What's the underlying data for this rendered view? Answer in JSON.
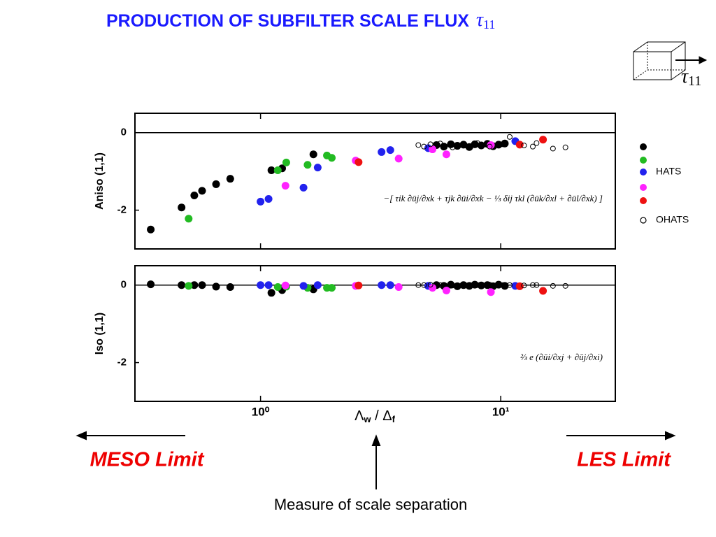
{
  "title": "PRODUCTION OF SUBFILTER SCALE FLUX",
  "title_symbol": "τ",
  "title_subscript": "11",
  "cube_symbol": "τ",
  "cube_subscript": "11",
  "meso_limit": "MESO Limit",
  "les_limit": "LES Limit",
  "caption": "Measure of scale separation",
  "x_label": [
    "Λ",
    "w",
    " / Δ",
    "f"
  ],
  "chart_data": [
    {
      "type": "scatter",
      "y_label": "Aniso (1,1)",
      "log_x": true,
      "xlim": [
        0.3,
        30
      ],
      "xticks": [
        1,
        10
      ],
      "ylim": [
        -3,
        0.5
      ],
      "yticks": [
        -2,
        0
      ],
      "annotation": "−[ τik ∂ūj/∂xk + τjk ∂ūi/∂xk − ⅓ δij τkl (∂ūk/∂xl + ∂ūl/∂xk) ]",
      "series": [
        {
          "color": "#000000",
          "x": [
            0.349,
            0.469,
            0.53,
            0.571,
            0.653,
            0.748,
            1.11,
            1.23,
            1.66,
            5.4,
            5.8,
            6.2,
            6.6,
            7.0,
            7.4,
            7.8,
            8.3,
            8.8,
            9.3,
            9.8,
            10.4
          ],
          "values": [
            -2.5,
            -1.93,
            -1.62,
            -1.5,
            -1.33,
            -1.19,
            -0.97,
            -0.92,
            -0.56,
            -0.32,
            -0.36,
            -0.3,
            -0.34,
            -0.31,
            -0.37,
            -0.3,
            -0.33,
            -0.29,
            -0.35,
            -0.31,
            -0.28
          ]
        },
        {
          "color": "#22bb22",
          "x": [
            0.502,
            1.18,
            1.28,
            1.57,
            1.89,
            1.98
          ],
          "values": [
            -2.22,
            -0.97,
            -0.77,
            -0.83,
            -0.59,
            -0.65
          ]
        },
        {
          "name": "HATS",
          "color": "#2222ee",
          "x": [
            1.0,
            1.08,
            1.51,
            1.73,
            3.19,
            3.47,
            4.99,
            11.5
          ],
          "values": [
            -1.78,
            -1.71,
            -1.42,
            -0.9,
            -0.5,
            -0.45,
            -0.4,
            -0.22
          ]
        },
        {
          "color": "#ff22ff",
          "x": [
            1.27,
            2.49,
            3.76,
            5.2,
            5.94,
            9.1
          ],
          "values": [
            -1.37,
            -0.72,
            -0.67,
            -0.43,
            -0.56,
            -0.32
          ]
        },
        {
          "color": "#ee1111",
          "x": [
            2.56,
            12.0,
            15.0
          ],
          "values": [
            -0.76,
            -0.31,
            -0.18
          ]
        },
        {
          "name": "OHATS",
          "color": "#000000",
          "marker": "open",
          "x": [
            4.54,
            4.79,
            5.1,
            5.6,
            6.3,
            7.1,
            8.0,
            9.0,
            10.2,
            10.9,
            12.5,
            13.6,
            14.1,
            16.5,
            18.6
          ],
          "values": [
            -0.32,
            -0.36,
            -0.3,
            -0.28,
            -0.38,
            -0.33,
            -0.27,
            -0.36,
            -0.3,
            -0.11,
            -0.33,
            -0.36,
            -0.27,
            -0.41,
            -0.38
          ]
        }
      ]
    },
    {
      "type": "scatter",
      "y_label": "Iso (1,1)",
      "log_x": true,
      "xlim": [
        0.3,
        30
      ],
      "xticks": [
        {
          "value": 1,
          "label": "10⁰"
        },
        {
          "value": 10,
          "label": "10¹"
        }
      ],
      "ylim": [
        -3,
        0.5
      ],
      "yticks": [
        -2,
        0
      ],
      "annotation": "⅔ e (∂ūi/∂xj + ∂ūj/∂xi)",
      "series": [
        {
          "color": "#000000",
          "x": [
            0.349,
            0.469,
            0.53,
            0.571,
            0.653,
            0.748,
            1.11,
            1.23,
            1.66,
            5.4,
            5.8,
            6.2,
            6.6,
            7.0,
            7.4,
            7.8,
            8.3,
            8.8,
            9.3,
            9.8,
            10.4
          ],
          "values": [
            0.02,
            0,
            0,
            0,
            -0.04,
            -0.05,
            -0.2,
            -0.13,
            -0.11,
            0,
            -0.02,
            0.01,
            -0.03,
            0,
            -0.02,
            0.01,
            -0.01,
            0,
            -0.03,
            0.01,
            -0.02
          ]
        },
        {
          "color": "#22bb22",
          "x": [
            0.502,
            1.18,
            1.28,
            1.57,
            1.89,
            1.98
          ],
          "values": [
            -0.02,
            -0.05,
            -0.04,
            -0.07,
            -0.07,
            -0.07
          ]
        },
        {
          "color": "#2222ee",
          "x": [
            1.0,
            1.08,
            1.51,
            1.73,
            3.19,
            3.47,
            4.99,
            11.5
          ],
          "values": [
            0,
            0,
            -0.02,
            0,
            0,
            0,
            -0.02,
            -0.02
          ]
        },
        {
          "color": "#ff22ff",
          "x": [
            1.27,
            2.49,
            3.76,
            5.2,
            5.94,
            9.1
          ],
          "values": [
            -0.01,
            -0.02,
            -0.05,
            -0.07,
            -0.14,
            -0.18
          ]
        },
        {
          "color": "#ee1111",
          "x": [
            2.56,
            12.0,
            15.0
          ],
          "values": [
            -0.01,
            -0.03,
            -0.15
          ]
        },
        {
          "color": "#000000",
          "marker": "open",
          "x": [
            4.54,
            4.79,
            5.1,
            5.6,
            6.3,
            7.1,
            8.0,
            9.0,
            10.2,
            10.9,
            12.5,
            13.6,
            14.1,
            16.5,
            18.6
          ],
          "values": [
            0,
            0,
            0.01,
            0,
            -0.01,
            0,
            0,
            0.01,
            0,
            0,
            -0.01,
            0,
            0,
            -0.02,
            -0.02
          ]
        }
      ]
    }
  ]
}
